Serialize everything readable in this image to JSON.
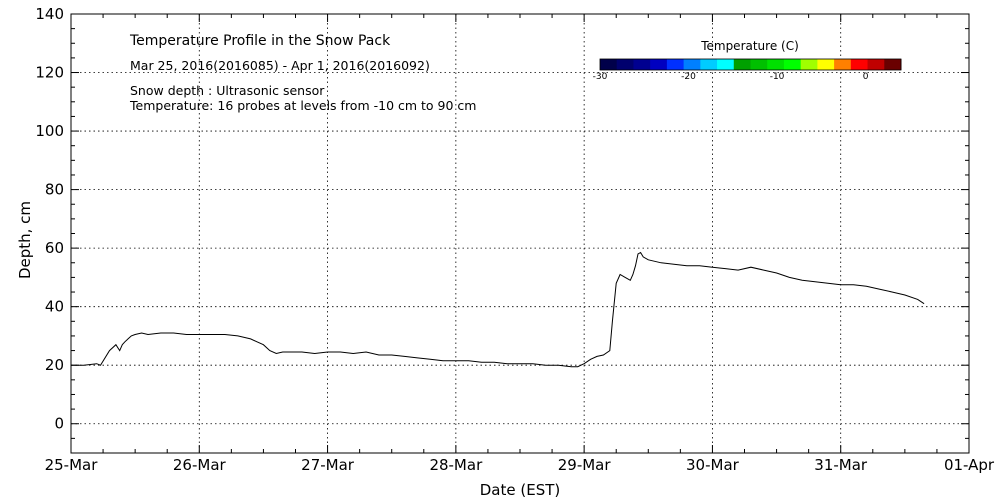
{
  "chart_data": {
    "type": "line",
    "title": "Temperature Profile in the Snow Pack",
    "subtitle": "Mar 25, 2016(2016085) - Apr  1, 2016(2016092)",
    "notes": [
      "Snow depth : Ultrasonic sensor",
      "Temperature: 16 probes at levels from -10 cm to 90 cm"
    ],
    "xlabel": "Date (EST)",
    "ylabel": "Depth, cm",
    "x_tick_labels": [
      "25-Mar",
      "26-Mar",
      "27-Mar",
      "28-Mar",
      "29-Mar",
      "30-Mar",
      "31-Mar",
      "01-Apr"
    ],
    "x_range_days": [
      0,
      7
    ],
    "ylim": [
      -10,
      140
    ],
    "y_ticks": [
      0,
      20,
      40,
      60,
      80,
      100,
      120,
      140
    ],
    "grid": true,
    "colorbar": {
      "title": "Temperature (C)",
      "tick_labels": [
        "-30",
        "-20",
        "-10",
        "0"
      ],
      "tick_values": [
        -30,
        -20,
        -10,
        0
      ],
      "range": [
        -30,
        4
      ],
      "colors": [
        "#00004a",
        "#00006e",
        "#000090",
        "#0000c0",
        "#0030ff",
        "#0080ff",
        "#00ccff",
        "#00ffff",
        "#00a000",
        "#00c000",
        "#00e000",
        "#00ff00",
        "#a0ff00",
        "#ffff00",
        "#ff8000",
        "#ff0000",
        "#c00000",
        "#6a0000"
      ]
    },
    "series": [
      {
        "name": "",
        "x": [
          0,
          0.1,
          0.2,
          0.23,
          0.3,
          0.35,
          0.38,
          0.4,
          0.42,
          0.47,
          0.5,
          0.55,
          0.6,
          0.7,
          0.8,
          0.9,
          1.0,
          1.1,
          1.2,
          1.3,
          1.4,
          1.45,
          1.5,
          1.55,
          1.6,
          1.65,
          1.7,
          1.8,
          1.9,
          2.0,
          2.1,
          2.2,
          2.3,
          2.4,
          2.5,
          2.6,
          2.7,
          2.8,
          2.9,
          3.0,
          3.1,
          3.2,
          3.3,
          3.4,
          3.5,
          3.6,
          3.7,
          3.8,
          3.9,
          3.95,
          4.0,
          4.05,
          4.1,
          4.15,
          4.2,
          4.22,
          4.25,
          4.28,
          4.32,
          4.36,
          4.38,
          4.4,
          4.42,
          4.44,
          4.46,
          4.5,
          4.55,
          4.6,
          4.7,
          4.8,
          4.9,
          5.0,
          5.1,
          5.2,
          5.3,
          5.4,
          5.5,
          5.6,
          5.7,
          5.8,
          5.9,
          6.0,
          6.1,
          6.2,
          6.3,
          6.4,
          6.5,
          6.6,
          6.65
        ],
        "values": [
          20,
          20,
          20.5,
          20,
          25,
          27,
          25,
          27,
          28,
          30,
          30.5,
          31,
          30.5,
          31,
          31,
          30.5,
          30.5,
          30.5,
          30.5,
          30,
          29,
          28,
          27,
          25,
          24,
          24.5,
          24.5,
          24.5,
          24,
          24.5,
          24.5,
          24,
          24.5,
          23.5,
          23.5,
          23,
          22.5,
          22,
          21.5,
          21.5,
          21.5,
          21,
          21,
          20.5,
          20.5,
          20.5,
          20,
          20,
          19.5,
          19.5,
          20.5,
          22,
          23,
          23.5,
          25,
          35,
          48,
          51,
          50,
          49,
          51,
          54,
          58,
          58.5,
          57,
          56,
          55.5,
          55,
          54.5,
          54,
          54,
          53.5,
          53,
          52.5,
          53.5,
          52.5,
          51.5,
          50,
          49,
          48.5,
          48,
          47.5,
          47.5,
          47,
          46,
          45,
          44,
          42.5,
          41
        ]
      }
    ]
  }
}
